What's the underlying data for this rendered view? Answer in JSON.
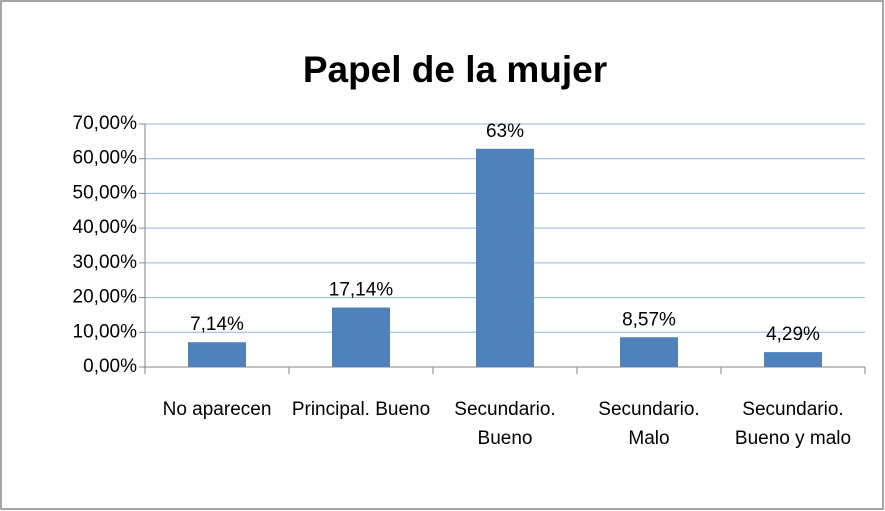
{
  "chart_data": {
    "type": "bar",
    "title": "Papel de la mujer",
    "categories": [
      "No aparecen",
      "Principal. Bueno",
      "Secundario. Bueno",
      "Secundario. Malo",
      "Secundario. Bueno y malo"
    ],
    "values": [
      7.14,
      17.14,
      62.86,
      8.57,
      4.29
    ],
    "value_labels": [
      "7,14%",
      "17,14%",
      "63%",
      "8,57%",
      "4,29%"
    ],
    "color": "#4f81bd",
    "ylim": [
      0,
      70
    ],
    "yticks": [
      {
        "value": 0,
        "label": "0,00%"
      },
      {
        "value": 10,
        "label": "10,00%"
      },
      {
        "value": 20,
        "label": "20,00%"
      },
      {
        "value": 30,
        "label": "30,00%"
      },
      {
        "value": 40,
        "label": "40,00%"
      },
      {
        "value": 50,
        "label": "50,00%"
      },
      {
        "value": 60,
        "label": "60,00%"
      },
      {
        "value": 70,
        "label": "70,00%"
      }
    ],
    "grid": true
  }
}
